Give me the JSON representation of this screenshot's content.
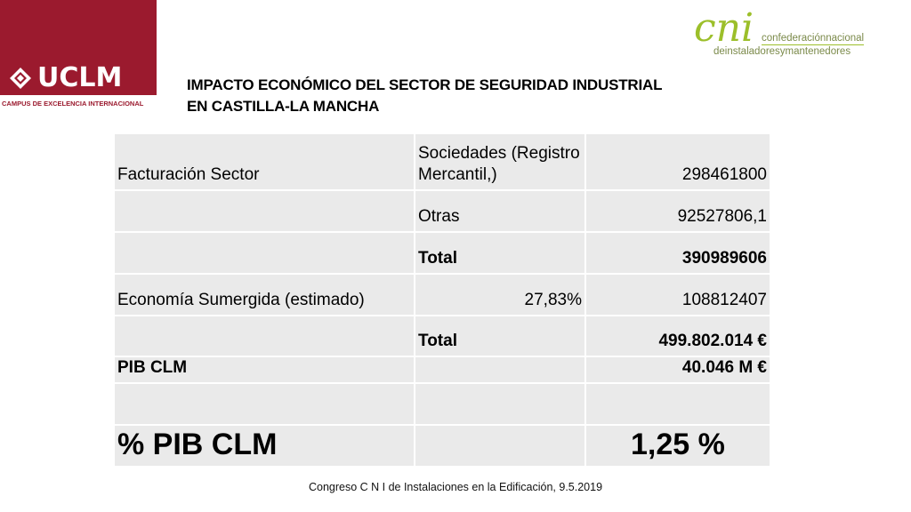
{
  "branding": {
    "uclm_name": "UCLM",
    "uclm_subtitle": "CAMPUS DE EXCELENCIA INTERNACIONAL",
    "cni_mark": "cni",
    "cni_line1": "confederaciónnacional",
    "cni_line2": "deinstaladoresymantenedores",
    "colors": {
      "uclm_red": "#9b1a2e",
      "cni_green": "#9cbf2a"
    }
  },
  "title": {
    "line1": "IMPACTO ECONÓMICO DEL SECTOR DE SEGURIDAD INDUSTRIAL",
    "line2": "EN CASTILLA-LA MANCHA"
  },
  "table": {
    "rows": [
      {
        "c1": "Facturación Sector",
        "c2": "Sociedades (Registro Mercantil,)",
        "c3": "298461800"
      },
      {
        "c1": "",
        "c2": "Otras",
        "c3": "92527806,1"
      },
      {
        "c1": "",
        "c2": "Total",
        "c3": "390989606"
      },
      {
        "c1": "Economía Sumergida (estimado)",
        "c2": "27,83%",
        "c3": "108812407"
      },
      {
        "c1": "",
        "c2": "Total",
        "c3": "499.802.014 €"
      },
      {
        "c1": "PIB CLM",
        "c2": "",
        "c3": "40.046 M €"
      },
      {
        "c1": "",
        "c2": "",
        "c3": ""
      },
      {
        "c1": "% PIB CLM",
        "c2": "",
        "c3": "1,25 %"
      }
    ]
  },
  "footer": "Congreso C N I de Instalaciones en la Edificación, 9.5.2019"
}
